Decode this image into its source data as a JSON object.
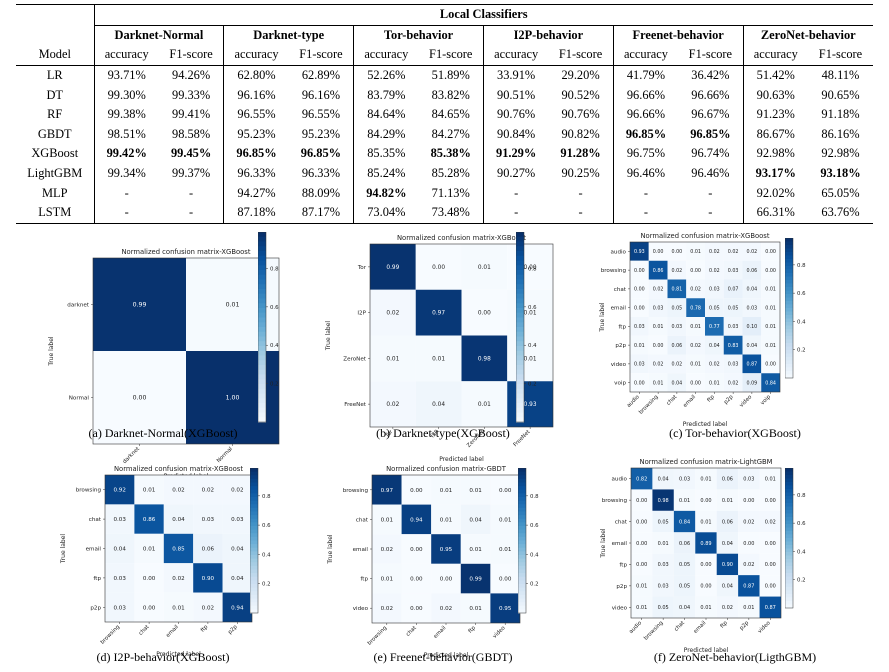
{
  "table": {
    "group_header": "Local Classifiers",
    "model_header": "Model",
    "metric_headers": [
      "accuracy",
      "F1-score"
    ],
    "classifiers": [
      "Darknet-Normal",
      "Darknet-type",
      "Tor-behavior",
      "I2P-behavior",
      "Freenet-behavior",
      "ZeroNet-behavior"
    ],
    "rows": [
      {
        "model": "LR",
        "cells": [
          "93.71%",
          "94.26%",
          "62.80%",
          "62.89%",
          "52.26%",
          "51.89%",
          "33.91%",
          "29.20%",
          "41.79%",
          "36.42%",
          "51.42%",
          "48.11%"
        ],
        "bold": []
      },
      {
        "model": "DT",
        "cells": [
          "99.30%",
          "99.33%",
          "96.16%",
          "96.16%",
          "83.79%",
          "83.82%",
          "90.51%",
          "90.52%",
          "96.66%",
          "96.66%",
          "90.63%",
          "90.65%"
        ],
        "bold": []
      },
      {
        "model": "RF",
        "cells": [
          "99.38%",
          "99.41%",
          "96.55%",
          "96.55%",
          "84.64%",
          "84.65%",
          "90.76%",
          "90.76%",
          "96.66%",
          "96.67%",
          "91.23%",
          "91.18%"
        ],
        "bold": []
      },
      {
        "model": "GBDT",
        "cells": [
          "98.51%",
          "98.58%",
          "95.23%",
          "95.23%",
          "84.29%",
          "84.27%",
          "90.84%",
          "90.82%",
          "96.85%",
          "96.85%",
          "86.67%",
          "86.16%"
        ],
        "bold": [
          8,
          9
        ]
      },
      {
        "model": "XGBoost",
        "cells": [
          "99.42%",
          "99.45%",
          "96.85%",
          "96.85%",
          "85.35%",
          "85.38%",
          "91.29%",
          "91.28%",
          "96.75%",
          "96.74%",
          "92.98%",
          "92.98%"
        ],
        "bold": [
          0,
          1,
          2,
          3,
          5,
          6,
          7
        ]
      },
      {
        "model": "LightGBM",
        "cells": [
          "99.34%",
          "99.37%",
          "96.33%",
          "96.33%",
          "85.24%",
          "85.28%",
          "90.27%",
          "90.25%",
          "96.46%",
          "96.46%",
          "93.17%",
          "93.18%"
        ],
        "bold": [
          10,
          11
        ]
      },
      {
        "model": "MLP",
        "cells": [
          "-",
          "-",
          "94.27%",
          "88.09%",
          "94.82%",
          "71.13%",
          "-",
          "-",
          "-",
          "-",
          "92.02%",
          "65.05%"
        ],
        "bold": [
          4
        ]
      },
      {
        "model": "LSTM",
        "cells": [
          "-",
          "-",
          "87.18%",
          "87.17%",
          "73.04%",
          "73.48%",
          "-",
          "-",
          "-",
          "-",
          "66.31%",
          "63.76%"
        ],
        "bold": []
      }
    ]
  },
  "figures": [
    {
      "id": "a",
      "title": "Normalized confusion matrix-XGBoost",
      "ylabel": "True label",
      "xlabel": "Predicted label",
      "caption": "(a)  Darknet-Normal(XGBoost)",
      "labels": [
        "darknet",
        "Normal"
      ],
      "matrix": [
        [
          "0.99",
          "0.01"
        ],
        [
          "0.00",
          "1.00"
        ]
      ]
    },
    {
      "id": "b",
      "title": "Normalized confusion matrix-XGBoost",
      "ylabel": "True label",
      "xlabel": "Predicted label",
      "caption": "(b)  Darknet-type(XGBoost)",
      "labels": [
        "Tor",
        "I2P",
        "ZeroNet",
        "FreeNet"
      ],
      "matrix": [
        [
          "0.99",
          "0.00",
          "0.01",
          "0.00"
        ],
        [
          "0.02",
          "0.97",
          "0.00",
          "0.01"
        ],
        [
          "0.01",
          "0.01",
          "0.98",
          "0.01"
        ],
        [
          "0.02",
          "0.04",
          "0.01",
          "0.93"
        ]
      ]
    },
    {
      "id": "c",
      "title": "Normalized confusion matrix-XGBoost",
      "ylabel": "True label",
      "xlabel": "Predicted label",
      "caption": "(c)  Tor-behavior(XGBoost)",
      "labels": [
        "audio",
        "browsing",
        "chat",
        "email",
        "ftp",
        "p2p",
        "video",
        "voip"
      ],
      "matrix": [
        [
          "0.93",
          "0.00",
          "0.00",
          "0.01",
          "0.02",
          "0.02",
          "0.02",
          "0.00"
        ],
        [
          "0.00",
          "0.86",
          "0.02",
          "0.00",
          "0.02",
          "0.03",
          "0.06",
          "0.00"
        ],
        [
          "0.00",
          "0.02",
          "0.81",
          "0.02",
          "0.03",
          "0.07",
          "0.04",
          "0.01"
        ],
        [
          "0.00",
          "0.03",
          "0.05",
          "0.78",
          "0.05",
          "0.05",
          "0.03",
          "0.01"
        ],
        [
          "0.03",
          "0.01",
          "0.03",
          "0.01",
          "0.77",
          "0.03",
          "0.10",
          "0.01"
        ],
        [
          "0.01",
          "0.00",
          "0.06",
          "0.02",
          "0.04",
          "0.83",
          "0.04",
          "0.01"
        ],
        [
          "0.03",
          "0.02",
          "0.02",
          "0.01",
          "0.02",
          "0.03",
          "0.87",
          "0.00"
        ],
        [
          "0.00",
          "0.01",
          "0.04",
          "0.00",
          "0.01",
          "0.02",
          "0.09",
          "0.84"
        ]
      ]
    },
    {
      "id": "d",
      "title": "Normalized confusion matrix-XGBoost",
      "ylabel": "True label",
      "xlabel": "Predicted label",
      "caption": "(d)  I2P-behavior(XGBoost)",
      "labels": [
        "browsing",
        "chat",
        "email",
        "ftp",
        "p2p"
      ],
      "matrix": [
        [
          "0.92",
          "0.01",
          "0.02",
          "0.02",
          "0.02"
        ],
        [
          "0.03",
          "0.86",
          "0.04",
          "0.03",
          "0.03"
        ],
        [
          "0.04",
          "0.01",
          "0.85",
          "0.06",
          "0.04"
        ],
        [
          "0.03",
          "0.00",
          "0.02",
          "0.90",
          "0.04"
        ],
        [
          "0.03",
          "0.00",
          "0.01",
          "0.02",
          "0.94"
        ]
      ]
    },
    {
      "id": "e",
      "title": "Normalized confusion matrix-GBDT",
      "ylabel": "True label",
      "xlabel": "Predicted label",
      "caption": "(e)  Freenet-behavior(GBDT)",
      "labels": [
        "browsing",
        "chat",
        "email",
        "ftp",
        "video"
      ],
      "matrix": [
        [
          "0.97",
          "0.00",
          "0.01",
          "0.01",
          "0.00"
        ],
        [
          "0.01",
          "0.94",
          "0.01",
          "0.04",
          "0.01"
        ],
        [
          "0.02",
          "0.00",
          "0.95",
          "0.01",
          "0.01"
        ],
        [
          "0.01",
          "0.00",
          "0.00",
          "0.99",
          "0.00"
        ],
        [
          "0.02",
          "0.00",
          "0.02",
          "0.01",
          "0.95"
        ]
      ]
    },
    {
      "id": "f",
      "title": "Normalized confusion matrix-LightGBM",
      "ylabel": "True label",
      "xlabel": "Predicted label",
      "caption": "(f)  ZeroNet-behavior(LigthGBM)",
      "labels": [
        "audio",
        "browsing",
        "chat",
        "email",
        "ftp",
        "p2p",
        "video"
      ],
      "matrix": [
        [
          "0.82",
          "0.04",
          "0.03",
          "0.01",
          "0.06",
          "0.03",
          "0.01"
        ],
        [
          "0.00",
          "0.98",
          "0.01",
          "0.00",
          "0.01",
          "0.00",
          "0.00"
        ],
        [
          "0.00",
          "0.05",
          "0.84",
          "0.01",
          "0.06",
          "0.02",
          "0.02"
        ],
        [
          "0.00",
          "0.01",
          "0.06",
          "0.89",
          "0.04",
          "0.00",
          "0.00"
        ],
        [
          "0.00",
          "0.03",
          "0.05",
          "0.00",
          "0.90",
          "0.02",
          "0.00"
        ],
        [
          "0.01",
          "0.03",
          "0.05",
          "0.00",
          "0.04",
          "0.87",
          "0.00"
        ],
        [
          "0.01",
          "0.05",
          "0.04",
          "0.01",
          "0.02",
          "0.01",
          "0.87"
        ]
      ]
    }
  ],
  "colorbar_ticks": [
    "0.2",
    "0.4",
    "0.6",
    "0.8"
  ],
  "colors": {
    "cmap_low": "#f7fbff",
    "cmap_high": "#08306b"
  }
}
